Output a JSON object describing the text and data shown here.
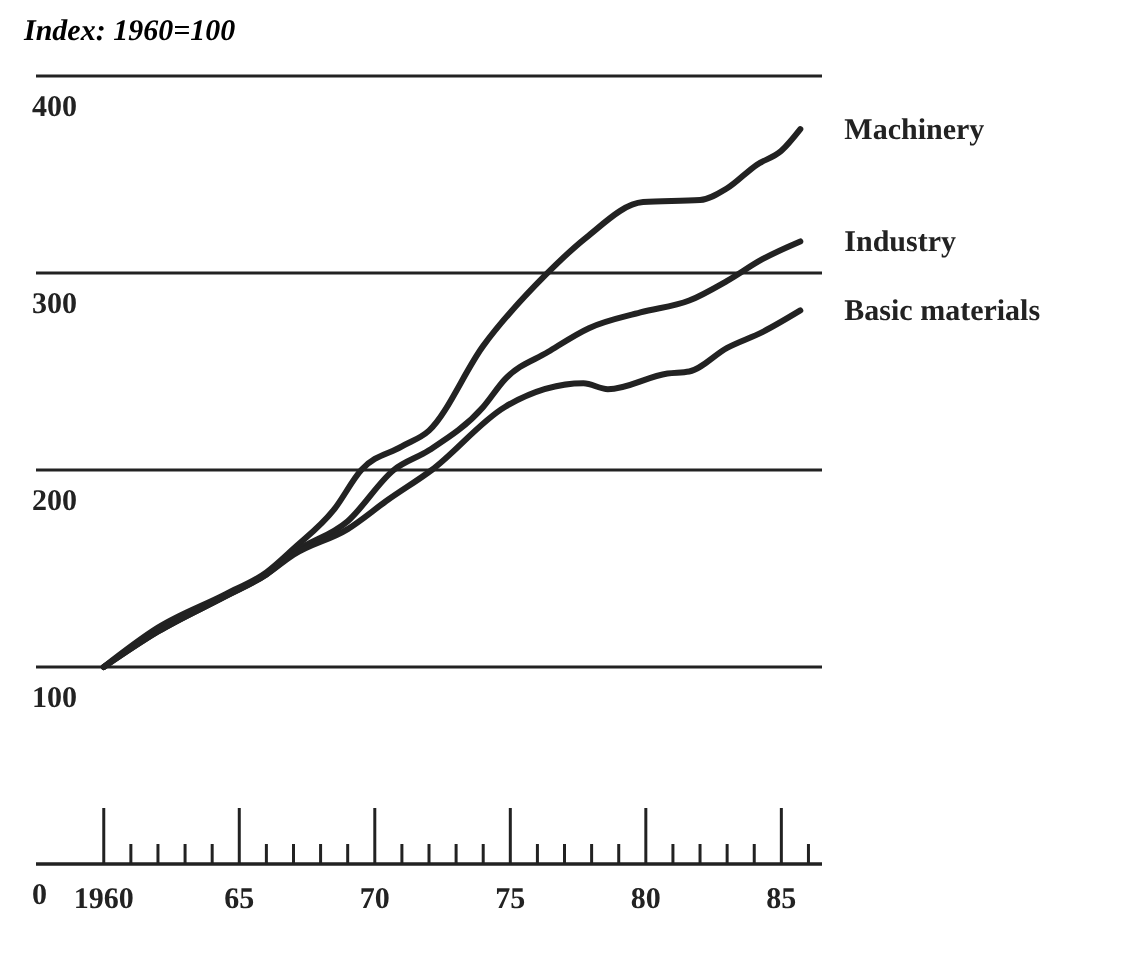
{
  "chart_data": {
    "type": "line",
    "title": "Index: 1960=100",
    "xlim": [
      1957.5,
      1986.5
    ],
    "xticks": [
      {
        "value": 1960,
        "label": "1960"
      },
      {
        "value": 1961,
        "label": null
      },
      {
        "value": 1962,
        "label": null
      },
      {
        "value": 1963,
        "label": null
      },
      {
        "value": 1964,
        "label": null
      },
      {
        "value": 1965,
        "label": "65"
      },
      {
        "value": 1966,
        "label": null
      },
      {
        "value": 1967,
        "label": null
      },
      {
        "value": 1968,
        "label": null
      },
      {
        "value": 1969,
        "label": null
      },
      {
        "value": 1970,
        "label": "70"
      },
      {
        "value": 1971,
        "label": null
      },
      {
        "value": 1972,
        "label": null
      },
      {
        "value": 1973,
        "label": null
      },
      {
        "value": 1974,
        "label": null
      },
      {
        "value": 1975,
        "label": "75"
      },
      {
        "value": 1976,
        "label": null
      },
      {
        "value": 1977,
        "label": null
      },
      {
        "value": 1978,
        "label": null
      },
      {
        "value": 1979,
        "label": null
      },
      {
        "value": 1980,
        "label": "80"
      },
      {
        "value": 1981,
        "label": null
      },
      {
        "value": 1982,
        "label": null
      },
      {
        "value": 1983,
        "label": null
      },
      {
        "value": 1984,
        "label": null
      },
      {
        "value": 1985,
        "label": "85"
      },
      {
        "value": 1986,
        "label": null
      }
    ],
    "ylim": [
      0,
      400
    ],
    "yticks": [
      0,
      100,
      200,
      300,
      400
    ],
    "grid": "y",
    "legend": false,
    "marker": "none",
    "line_style": "solid",
    "series": [
      {
        "name": "Machinery",
        "color": "#222222",
        "x": [
          1960,
          1962,
          1964.5,
          1966,
          1967,
          1968.5,
          1969.5,
          1971,
          1972,
          1974,
          1976.3,
          1977.8,
          1979.9,
          1982,
          1983,
          1984.1,
          1985,
          1985.7
        ],
        "values": [
          100,
          120,
          137,
          148,
          160,
          180,
          200,
          212,
          220,
          263,
          299,
          318,
          336,
          337,
          343,
          355,
          362,
          373
        ]
      },
      {
        "name": "Industry",
        "color": "#222222",
        "x": [
          1960,
          1962,
          1964.5,
          1966,
          1967,
          1969,
          1970.7,
          1972,
          1974,
          1974.8,
          1976.4,
          1977.9,
          1979.8,
          1981.6,
          1983,
          1984.3,
          1985.7
        ],
        "values": [
          100,
          118,
          136,
          147,
          158,
          174,
          200,
          210,
          232,
          246,
          260,
          272,
          280,
          286,
          296,
          307,
          316
        ]
      },
      {
        "name": "Basic materials",
        "color": "#222222",
        "x": [
          1960,
          1962,
          1964.5,
          1966,
          1967,
          1969,
          1970.5,
          1972.1,
          1974.8,
          1977.7,
          1978.6,
          1980.8,
          1981.6,
          1983,
          1984.3,
          1985.7
        ],
        "values": [
          100,
          118,
          136,
          147,
          157,
          170,
          185,
          200,
          232,
          244,
          241,
          249,
          250,
          262,
          270,
          281
        ]
      }
    ]
  }
}
